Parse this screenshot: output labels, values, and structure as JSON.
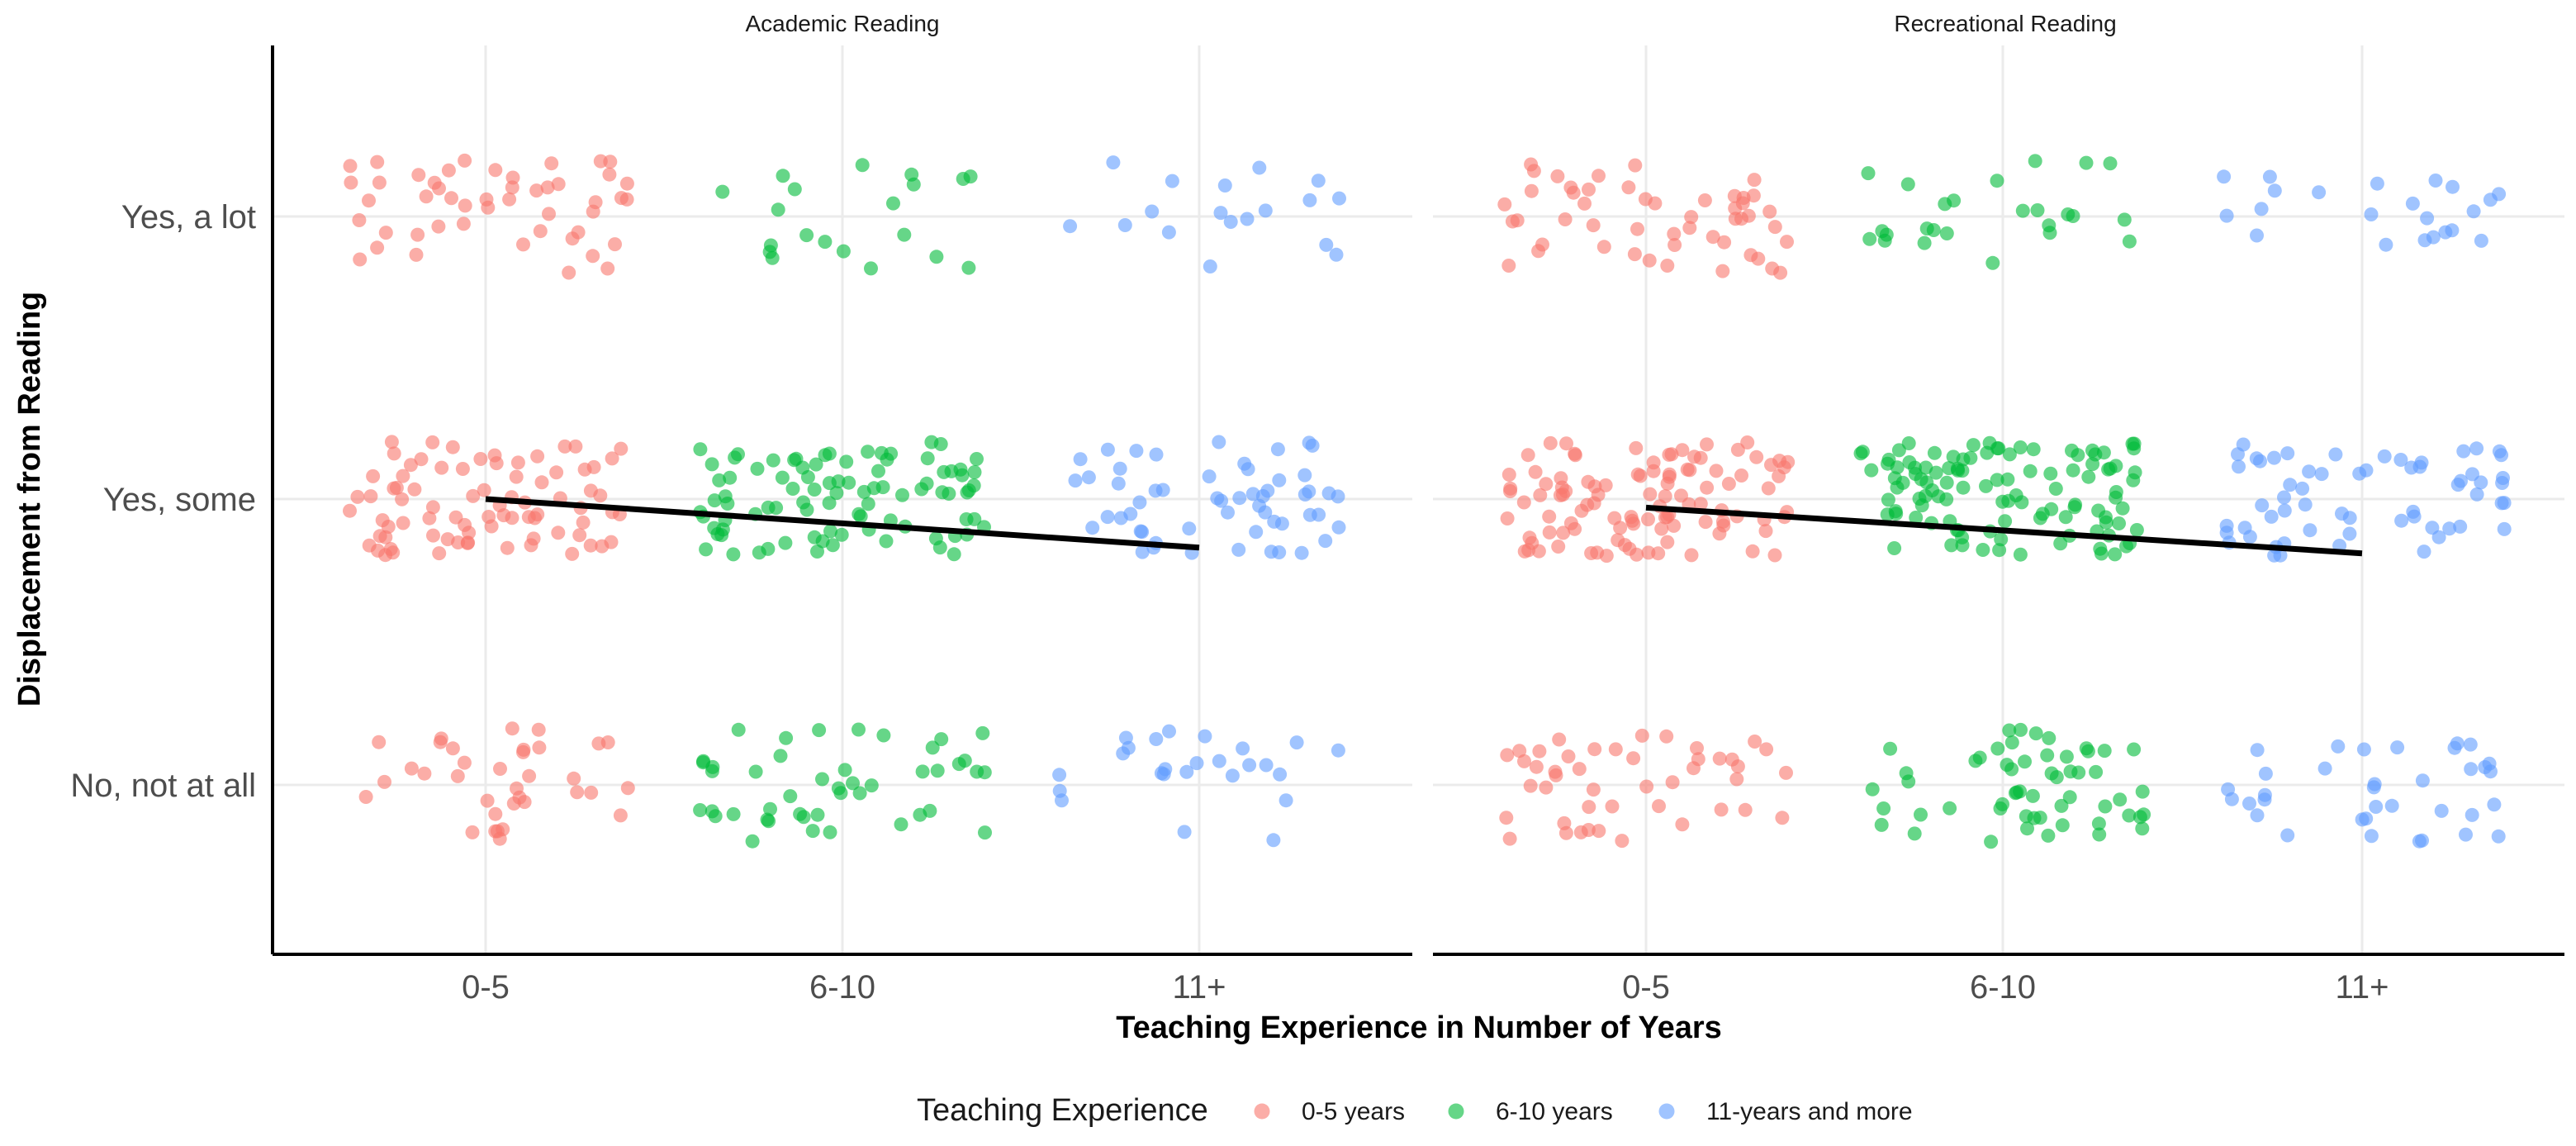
{
  "chart_data": {
    "type": "scatter",
    "title": "",
    "xlabel": "Teaching Experience in Number of Years",
    "ylabel": "Displacement from Reading",
    "facets": [
      "Academic Reading",
      "Recreational Reading"
    ],
    "categories_x": [
      "0-5",
      "6-10",
      "11+"
    ],
    "categories_y": [
      "No, not at all",
      "Yes, some",
      "Yes, a lot"
    ],
    "grid": true,
    "legend": {
      "title": "Teaching Experience",
      "position": "bottom",
      "items": [
        {
          "label": "0-5 years",
          "color": "#F8766D"
        },
        {
          "label": "6-10 years",
          "color": "#00BA38"
        },
        {
          "label": "11-years and more",
          "color": "#619CFF"
        }
      ]
    },
    "point_counts": {
      "Academic Reading": {
        "0-5": {
          "No, not at all": 35,
          "Yes, some": 80,
          "Yes, a lot": 48
        },
        "6-10": {
          "No, not at all": 45,
          "Yes, some": 90,
          "Yes, a lot": 20
        },
        "11+": {
          "No, not at all": 25,
          "Yes, some": 55,
          "Yes, a lot": 18
        }
      },
      "Recreational Reading": {
        "0-5": {
          "No, not at all": 45,
          "Yes, some": 105,
          "Yes, a lot": 50
        },
        "6-10": {
          "No, not at all": 55,
          "Yes, some": 110,
          "Yes, a lot": 25
        },
        "11+": {
          "No, not at all": 35,
          "Yes, some": 60,
          "Yes, a lot": 22
        }
      }
    },
    "trend_lines": [
      {
        "facet": "Academic Reading",
        "color": "#000000",
        "x": [
          "0-5",
          "11+"
        ],
        "y": [
          2.0,
          1.83
        ]
      },
      {
        "facet": "Recreational Reading",
        "color": "#000000",
        "x": [
          "0-5",
          "11+"
        ],
        "y": [
          1.97,
          1.81
        ]
      }
    ],
    "point_alpha": 0.6,
    "jitter": {
      "x": 0.4,
      "y": 0.2
    }
  }
}
